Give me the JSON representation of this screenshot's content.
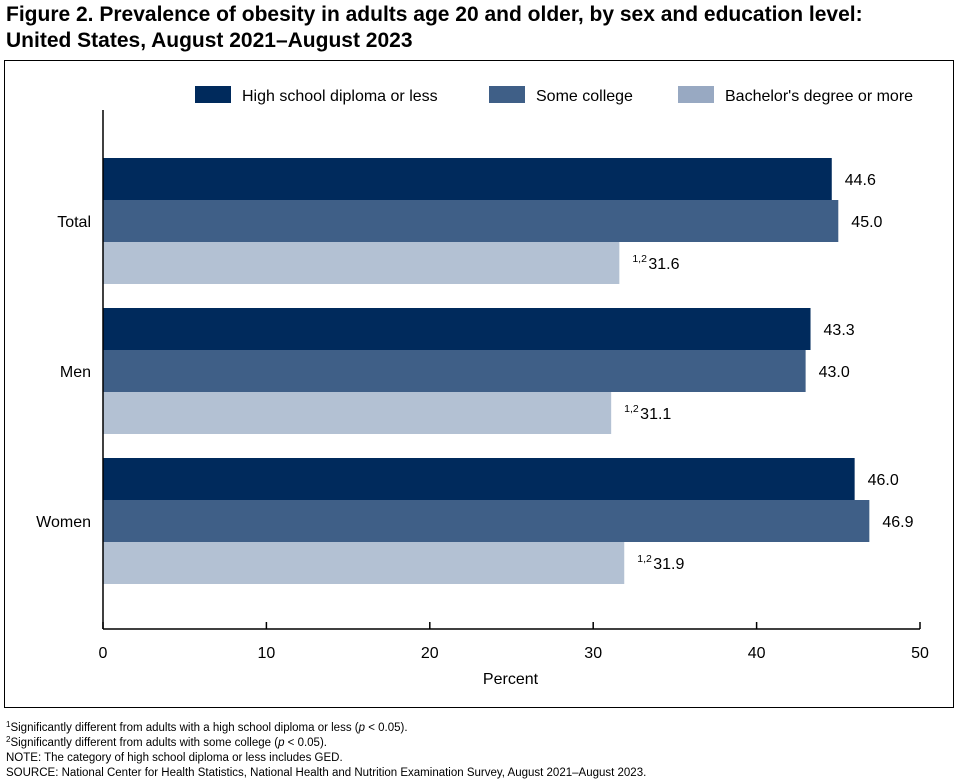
{
  "title": {
    "line1": "Figure 2. Prevalence of obesity in adults age 20 and older, by sex and education level:",
    "line2": "United States, August 2021–August 2023"
  },
  "chart_data": {
    "type": "bar",
    "orientation": "horizontal",
    "categories": [
      "Total",
      "Men",
      "Women"
    ],
    "series": [
      {
        "name": "High school diploma or less",
        "color": "#002a5c",
        "values": [
          44.6,
          43.3,
          46.0
        ],
        "labels": [
          "44.6",
          "43.3",
          "46.0"
        ],
        "superscripts": [
          "",
          "",
          ""
        ]
      },
      {
        "name": "Some college",
        "color": "#3f5f87",
        "values": [
          45.0,
          43.0,
          46.9
        ],
        "labels": [
          "45.0",
          "43.0",
          "46.9"
        ],
        "superscripts": [
          "",
          "",
          ""
        ]
      },
      {
        "name": "Bachelor's degree or more",
        "color": "#b3c1d3",
        "legend_color": "#98a9c2",
        "values": [
          31.6,
          31.1,
          31.9
        ],
        "labels": [
          "31.6",
          "31.1",
          "31.9"
        ],
        "superscripts": [
          "1,2",
          "1,2",
          "1,2"
        ]
      }
    ],
    "xlabel": "Percent",
    "xlim": [
      0,
      50
    ],
    "xticks": [
      "0",
      "10",
      "20",
      "30",
      "40",
      "50"
    ],
    "grid": false,
    "legend_position": "top"
  },
  "footnotes": {
    "note1_sup": "1",
    "note1_text_a": "Significantly different from adults with a high school diploma or less (",
    "note1_p": "p",
    "note1_text_b": " < 0.05).",
    "note2_sup": "2",
    "note2_text_a": "Significantly different from adults with some college (",
    "note2_p": "p",
    "note2_text_b": " < 0.05).",
    "note3": "NOTE: The category of high school diploma or less includes GED.",
    "source": "SOURCE: National Center for Health Statistics, National Health and Nutrition Examination Survey, August 2021–August 2023."
  }
}
